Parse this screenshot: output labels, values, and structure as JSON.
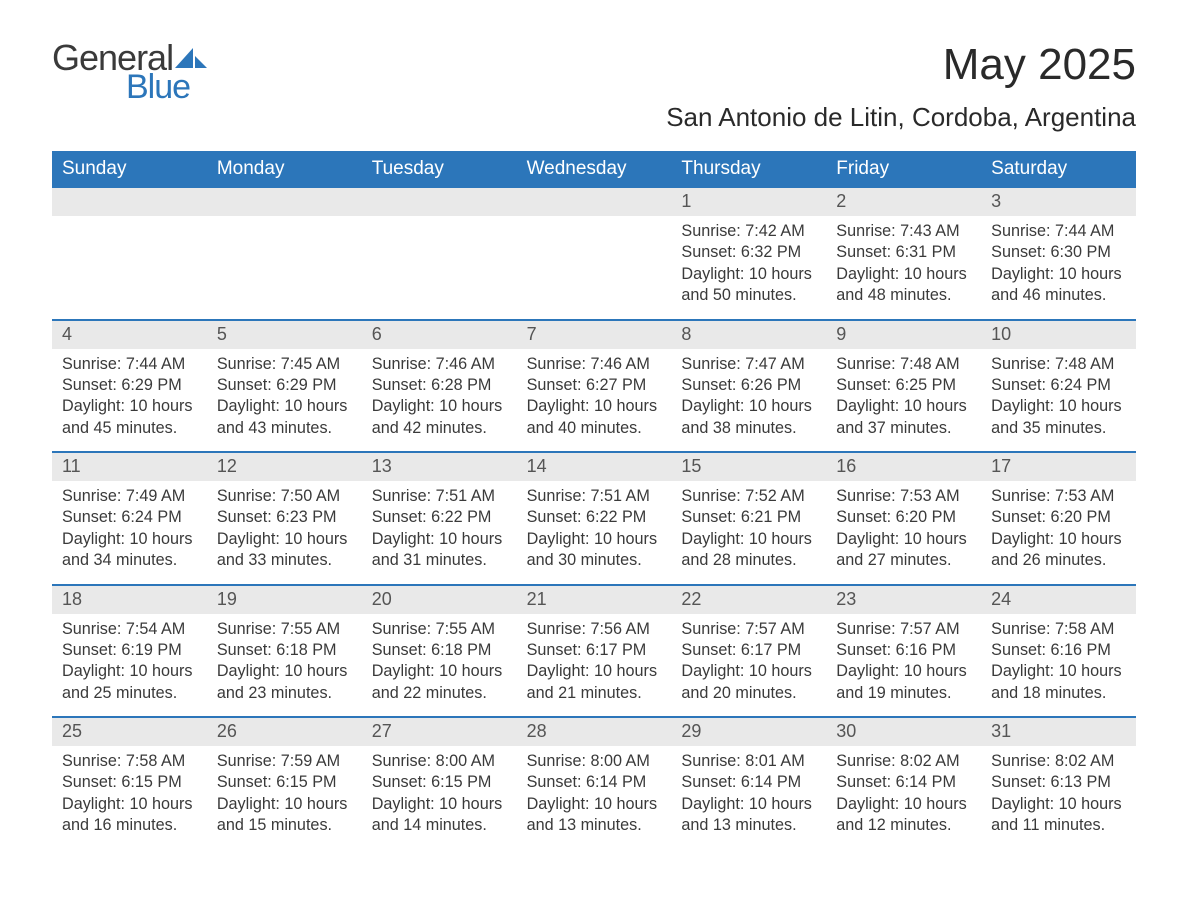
{
  "brand": {
    "word1": "General",
    "word2": "Blue"
  },
  "header": {
    "month_title": "May 2025",
    "location": "San Antonio de Litin, Cordoba, Argentina"
  },
  "colors": {
    "accent": "#2c76ba",
    "header_text": "#ffffff",
    "daynum_bg": "#e9e9e9",
    "body_text": "#3a3a3a",
    "page_bg": "#ffffff"
  },
  "columns": [
    "Sunday",
    "Monday",
    "Tuesday",
    "Wednesday",
    "Thursday",
    "Friday",
    "Saturday"
  ],
  "weeks": [
    {
      "days": [
        {
          "num": "",
          "sunrise": "",
          "sunset": "",
          "daylight1": "",
          "daylight2": ""
        },
        {
          "num": "",
          "sunrise": "",
          "sunset": "",
          "daylight1": "",
          "daylight2": ""
        },
        {
          "num": "",
          "sunrise": "",
          "sunset": "",
          "daylight1": "",
          "daylight2": ""
        },
        {
          "num": "",
          "sunrise": "",
          "sunset": "",
          "daylight1": "",
          "daylight2": ""
        },
        {
          "num": "1",
          "sunrise": "Sunrise: 7:42 AM",
          "sunset": "Sunset: 6:32 PM",
          "daylight1": "Daylight: 10 hours",
          "daylight2": "and 50 minutes."
        },
        {
          "num": "2",
          "sunrise": "Sunrise: 7:43 AM",
          "sunset": "Sunset: 6:31 PM",
          "daylight1": "Daylight: 10 hours",
          "daylight2": "and 48 minutes."
        },
        {
          "num": "3",
          "sunrise": "Sunrise: 7:44 AM",
          "sunset": "Sunset: 6:30 PM",
          "daylight1": "Daylight: 10 hours",
          "daylight2": "and 46 minutes."
        }
      ]
    },
    {
      "days": [
        {
          "num": "4",
          "sunrise": "Sunrise: 7:44 AM",
          "sunset": "Sunset: 6:29 PM",
          "daylight1": "Daylight: 10 hours",
          "daylight2": "and 45 minutes."
        },
        {
          "num": "5",
          "sunrise": "Sunrise: 7:45 AM",
          "sunset": "Sunset: 6:29 PM",
          "daylight1": "Daylight: 10 hours",
          "daylight2": "and 43 minutes."
        },
        {
          "num": "6",
          "sunrise": "Sunrise: 7:46 AM",
          "sunset": "Sunset: 6:28 PM",
          "daylight1": "Daylight: 10 hours",
          "daylight2": "and 42 minutes."
        },
        {
          "num": "7",
          "sunrise": "Sunrise: 7:46 AM",
          "sunset": "Sunset: 6:27 PM",
          "daylight1": "Daylight: 10 hours",
          "daylight2": "and 40 minutes."
        },
        {
          "num": "8",
          "sunrise": "Sunrise: 7:47 AM",
          "sunset": "Sunset: 6:26 PM",
          "daylight1": "Daylight: 10 hours",
          "daylight2": "and 38 minutes."
        },
        {
          "num": "9",
          "sunrise": "Sunrise: 7:48 AM",
          "sunset": "Sunset: 6:25 PM",
          "daylight1": "Daylight: 10 hours",
          "daylight2": "and 37 minutes."
        },
        {
          "num": "10",
          "sunrise": "Sunrise: 7:48 AM",
          "sunset": "Sunset: 6:24 PM",
          "daylight1": "Daylight: 10 hours",
          "daylight2": "and 35 minutes."
        }
      ]
    },
    {
      "days": [
        {
          "num": "11",
          "sunrise": "Sunrise: 7:49 AM",
          "sunset": "Sunset: 6:24 PM",
          "daylight1": "Daylight: 10 hours",
          "daylight2": "and 34 minutes."
        },
        {
          "num": "12",
          "sunrise": "Sunrise: 7:50 AM",
          "sunset": "Sunset: 6:23 PM",
          "daylight1": "Daylight: 10 hours",
          "daylight2": "and 33 minutes."
        },
        {
          "num": "13",
          "sunrise": "Sunrise: 7:51 AM",
          "sunset": "Sunset: 6:22 PM",
          "daylight1": "Daylight: 10 hours",
          "daylight2": "and 31 minutes."
        },
        {
          "num": "14",
          "sunrise": "Sunrise: 7:51 AM",
          "sunset": "Sunset: 6:22 PM",
          "daylight1": "Daylight: 10 hours",
          "daylight2": "and 30 minutes."
        },
        {
          "num": "15",
          "sunrise": "Sunrise: 7:52 AM",
          "sunset": "Sunset: 6:21 PM",
          "daylight1": "Daylight: 10 hours",
          "daylight2": "and 28 minutes."
        },
        {
          "num": "16",
          "sunrise": "Sunrise: 7:53 AM",
          "sunset": "Sunset: 6:20 PM",
          "daylight1": "Daylight: 10 hours",
          "daylight2": "and 27 minutes."
        },
        {
          "num": "17",
          "sunrise": "Sunrise: 7:53 AM",
          "sunset": "Sunset: 6:20 PM",
          "daylight1": "Daylight: 10 hours",
          "daylight2": "and 26 minutes."
        }
      ]
    },
    {
      "days": [
        {
          "num": "18",
          "sunrise": "Sunrise: 7:54 AM",
          "sunset": "Sunset: 6:19 PM",
          "daylight1": "Daylight: 10 hours",
          "daylight2": "and 25 minutes."
        },
        {
          "num": "19",
          "sunrise": "Sunrise: 7:55 AM",
          "sunset": "Sunset: 6:18 PM",
          "daylight1": "Daylight: 10 hours",
          "daylight2": "and 23 minutes."
        },
        {
          "num": "20",
          "sunrise": "Sunrise: 7:55 AM",
          "sunset": "Sunset: 6:18 PM",
          "daylight1": "Daylight: 10 hours",
          "daylight2": "and 22 minutes."
        },
        {
          "num": "21",
          "sunrise": "Sunrise: 7:56 AM",
          "sunset": "Sunset: 6:17 PM",
          "daylight1": "Daylight: 10 hours",
          "daylight2": "and 21 minutes."
        },
        {
          "num": "22",
          "sunrise": "Sunrise: 7:57 AM",
          "sunset": "Sunset: 6:17 PM",
          "daylight1": "Daylight: 10 hours",
          "daylight2": "and 20 minutes."
        },
        {
          "num": "23",
          "sunrise": "Sunrise: 7:57 AM",
          "sunset": "Sunset: 6:16 PM",
          "daylight1": "Daylight: 10 hours",
          "daylight2": "and 19 minutes."
        },
        {
          "num": "24",
          "sunrise": "Sunrise: 7:58 AM",
          "sunset": "Sunset: 6:16 PM",
          "daylight1": "Daylight: 10 hours",
          "daylight2": "and 18 minutes."
        }
      ]
    },
    {
      "days": [
        {
          "num": "25",
          "sunrise": "Sunrise: 7:58 AM",
          "sunset": "Sunset: 6:15 PM",
          "daylight1": "Daylight: 10 hours",
          "daylight2": "and 16 minutes."
        },
        {
          "num": "26",
          "sunrise": "Sunrise: 7:59 AM",
          "sunset": "Sunset: 6:15 PM",
          "daylight1": "Daylight: 10 hours",
          "daylight2": "and 15 minutes."
        },
        {
          "num": "27",
          "sunrise": "Sunrise: 8:00 AM",
          "sunset": "Sunset: 6:15 PM",
          "daylight1": "Daylight: 10 hours",
          "daylight2": "and 14 minutes."
        },
        {
          "num": "28",
          "sunrise": "Sunrise: 8:00 AM",
          "sunset": "Sunset: 6:14 PM",
          "daylight1": "Daylight: 10 hours",
          "daylight2": "and 13 minutes."
        },
        {
          "num": "29",
          "sunrise": "Sunrise: 8:01 AM",
          "sunset": "Sunset: 6:14 PM",
          "daylight1": "Daylight: 10 hours",
          "daylight2": "and 13 minutes."
        },
        {
          "num": "30",
          "sunrise": "Sunrise: 8:02 AM",
          "sunset": "Sunset: 6:14 PM",
          "daylight1": "Daylight: 10 hours",
          "daylight2": "and 12 minutes."
        },
        {
          "num": "31",
          "sunrise": "Sunrise: 8:02 AM",
          "sunset": "Sunset: 6:13 PM",
          "daylight1": "Daylight: 10 hours",
          "daylight2": "and 11 minutes."
        }
      ]
    }
  ]
}
